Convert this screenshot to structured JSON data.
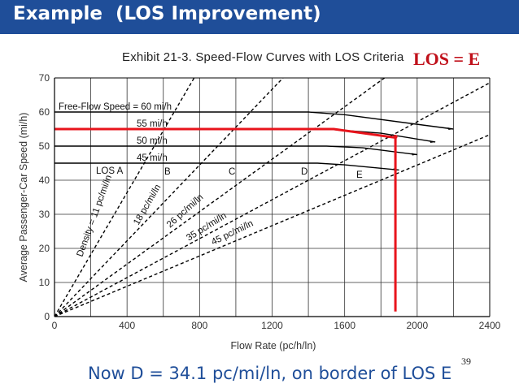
{
  "slide": {
    "title": "Example  (LOS Improvement)",
    "los_badge": "LOS = E",
    "caption": "Now D = 34.1 pc/mi/ln, on border of LOS E",
    "slide_number": "39",
    "colors": {
      "title_bar": "#1f4e99",
      "title_text": "#ffffff",
      "caption": "#1f4e99",
      "highlight": "#e8141c"
    }
  },
  "chart_data": {
    "type": "line",
    "title": "Exhibit 21-3.  Speed-Flow Curves with LOS Criteria",
    "xlabel": "Flow Rate (pc/h/ln)",
    "ylabel": "Average Passenger-Car Speed (mi/h)",
    "xlim": [
      0,
      2400
    ],
    "ylim": [
      0,
      70
    ],
    "x_ticks": [
      "0",
      "400",
      "800",
      "1200",
      "1600",
      "2000",
      "2400"
    ],
    "y_ticks": [
      "0",
      "10",
      "20",
      "30",
      "40",
      "50",
      "60",
      "70"
    ],
    "grid": true,
    "speed_flow_series": [
      {
        "name": "Free-Flow Speed = 60 mi/h",
        "points": [
          [
            0,
            60
          ],
          [
            1400,
            60
          ],
          [
            1600,
            59.2
          ],
          [
            2200,
            55
          ]
        ]
      },
      {
        "name": "55 mi/h",
        "points": [
          [
            0,
            55
          ],
          [
            1500,
            55
          ],
          [
            1800,
            53.8
          ],
          [
            2100,
            51.2
          ]
        ]
      },
      {
        "name": "50 mi/h",
        "points": [
          [
            0,
            50
          ],
          [
            1500,
            50
          ],
          [
            1700,
            49.5
          ],
          [
            2000,
            47.5
          ]
        ]
      },
      {
        "name": "45 mi/h",
        "points": [
          [
            0,
            45
          ],
          [
            1450,
            45
          ],
          [
            1600,
            44.5
          ],
          [
            1900,
            43
          ]
        ]
      }
    ],
    "density_lines": [
      {
        "name": "Density = 11 pc/mi/ln",
        "density": 11
      },
      {
        "name": "18 pc/mi/ln",
        "density": 18
      },
      {
        "name": "26 pc/mi/ln",
        "density": 26
      },
      {
        "name": "35 pc/mi/ln",
        "density": 35
      },
      {
        "name": "45 pc/mi/ln",
        "density": 45
      }
    ],
    "los_labels": [
      "LOS A",
      "B",
      "C",
      "D",
      "E"
    ],
    "highlight_path": {
      "color": "#e8141c",
      "points": [
        [
          0,
          55
        ],
        [
          1540,
          55
        ],
        [
          1880,
          52.5
        ],
        [
          1880,
          1.5
        ]
      ]
    }
  }
}
